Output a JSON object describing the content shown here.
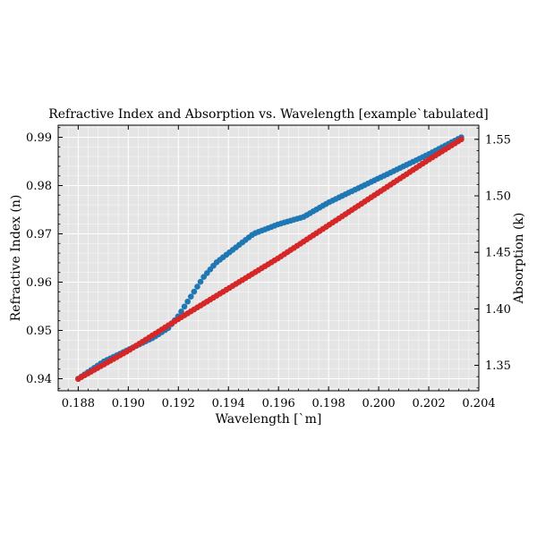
{
  "chart_data": {
    "type": "scatter",
    "title": "Refractive Index and Absorption vs. Wavelength [example`tabulated]",
    "xlabel": "Wavelength [`m]",
    "ylabel_left": "Refractive Index (n)",
    "ylabel_right": "Absorption (k)",
    "xlim": [
      0.1872,
      0.204
    ],
    "ylim_left": [
      0.9375,
      0.9925
    ],
    "ylim_right": [
      1.3275,
      1.5625
    ],
    "x_ticks": [
      0.188,
      0.19,
      0.192,
      0.194,
      0.196,
      0.198,
      0.2,
      0.202,
      0.204
    ],
    "x_tick_labels": [
      "0.188",
      "0.190",
      "0.192",
      "0.194",
      "0.196",
      "0.198",
      "0.200",
      "0.202",
      "0.204"
    ],
    "y_left_ticks": [
      0.94,
      0.95,
      0.96,
      0.97,
      0.98,
      0.99
    ],
    "y_left_tick_labels": [
      "0.94",
      "0.95",
      "0.96",
      "0.97",
      "0.98",
      "0.99"
    ],
    "y_right_ticks": [
      1.35,
      1.4,
      1.45,
      1.5,
      1.55
    ],
    "y_right_tick_labels": [
      "1.35",
      "1.40",
      "1.45",
      "1.50",
      "1.55"
    ],
    "grid": true,
    "background_color": "#e5e5e5",
    "series": [
      {
        "axis": "left",
        "color": "#1f77b4",
        "x_range": [
          0.188,
          0.2033
        ],
        "count": 120,
        "points": [
          [
            0.188,
            0.94
          ],
          [
            0.189,
            0.9435
          ],
          [
            0.19,
            0.946
          ],
          [
            0.191,
            0.9485
          ],
          [
            0.1916,
            0.9505
          ],
          [
            0.192,
            0.953
          ],
          [
            0.1925,
            0.957
          ],
          [
            0.193,
            0.961
          ],
          [
            0.1935,
            0.964
          ],
          [
            0.194,
            0.966
          ],
          [
            0.1945,
            0.968
          ],
          [
            0.195,
            0.97
          ],
          [
            0.1955,
            0.971
          ],
          [
            0.196,
            0.972
          ],
          [
            0.197,
            0.9735
          ],
          [
            0.198,
            0.9765
          ],
          [
            0.199,
            0.979
          ],
          [
            0.2,
            0.9815
          ],
          [
            0.201,
            0.984
          ],
          [
            0.202,
            0.9865
          ],
          [
            0.2033,
            0.99
          ]
        ]
      },
      {
        "axis": "right",
        "color": "#d62728",
        "x_range": [
          0.188,
          0.2033
        ],
        "count": 120,
        "points": [
          [
            0.188,
            1.338
          ],
          [
            0.19,
            1.363
          ],
          [
            0.192,
            1.391
          ],
          [
            0.194,
            1.418
          ],
          [
            0.196,
            1.445
          ],
          [
            0.198,
            1.474
          ],
          [
            0.2,
            1.503
          ],
          [
            0.202,
            1.532
          ],
          [
            0.2033,
            1.55
          ]
        ]
      }
    ]
  }
}
